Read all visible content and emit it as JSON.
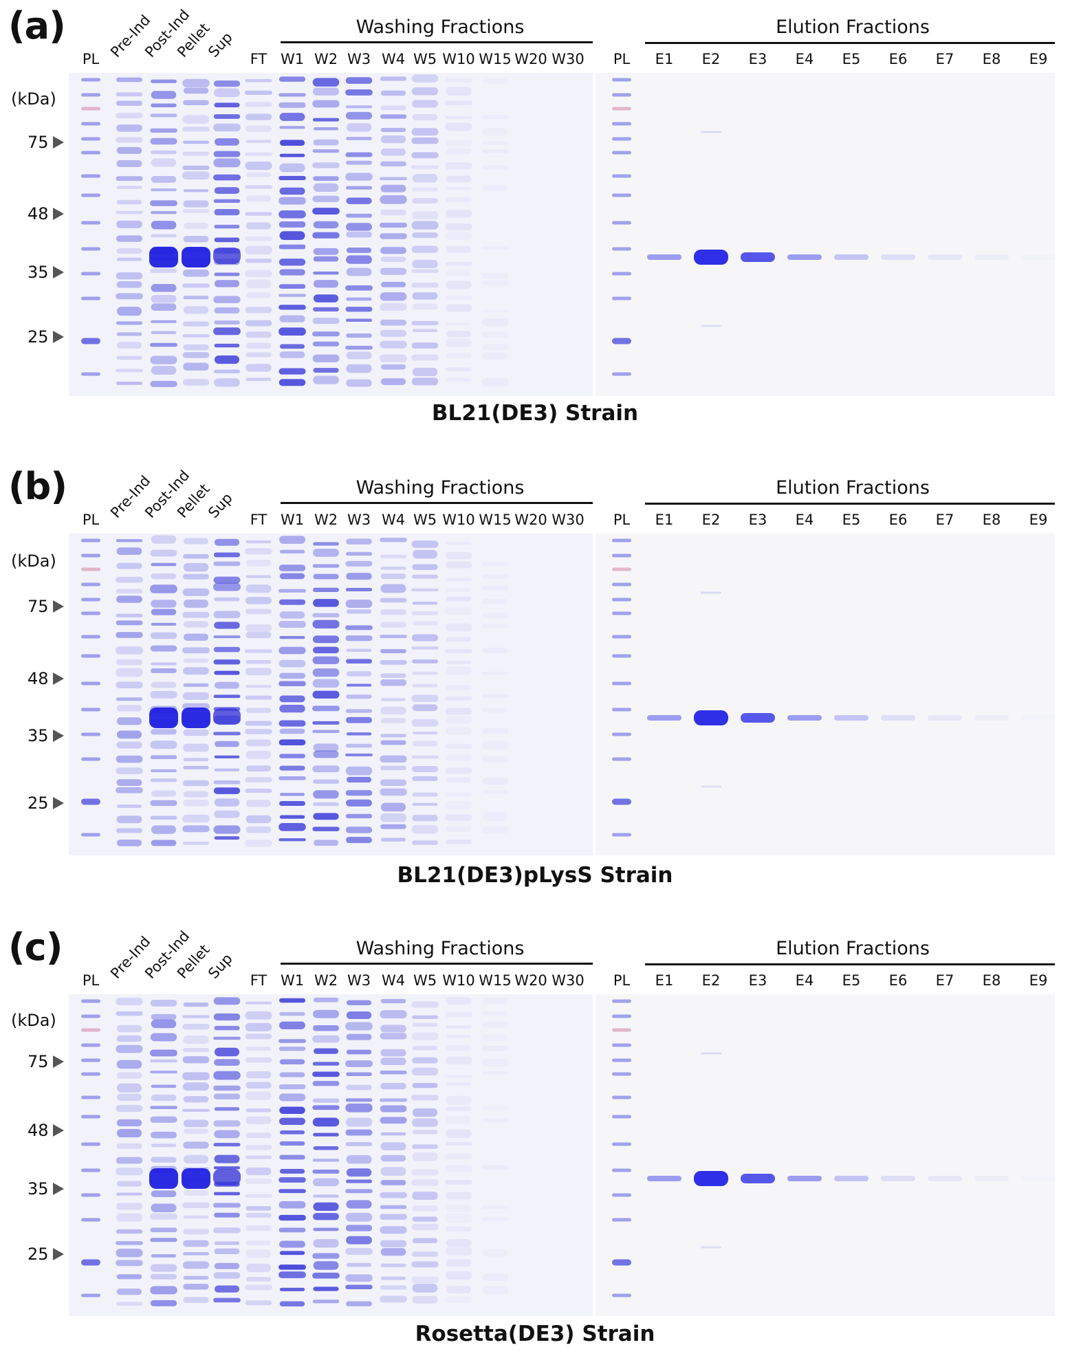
{
  "panels": [
    {
      "letter": "(a)",
      "caption": "BL21(DE3) Strain",
      "washing_title": "Washing Fractions",
      "elution_title": "Elution Fractions",
      "kda_unit": "(kDa)",
      "markers": [
        "75",
        "48",
        "35",
        "25"
      ]
    },
    {
      "letter": "(b)",
      "caption": "BL21(DE3)pLysS Strain",
      "washing_title": "Washing Fractions",
      "elution_title": "Elution Fractions",
      "kda_unit": "(kDa)",
      "markers": [
        "75",
        "48",
        "35",
        "25"
      ]
    },
    {
      "letter": "(c)",
      "caption": "Rosetta(DE3) Strain",
      "washing_title": "Washing Fractions",
      "elution_title": "Elution Fractions",
      "kda_unit": "(kDa)",
      "markers": [
        "75",
        "48",
        "35",
        "25"
      ]
    }
  ],
  "left_lanes": [
    "PL",
    "Pre-Ind",
    "Post-Ind",
    "Pellet",
    "Sup",
    "FT",
    "W1",
    "W2",
    "W3",
    "W4",
    "W5",
    "W10",
    "W15",
    "W20",
    "W30"
  ],
  "right_lanes": [
    "PL",
    "E1",
    "E2",
    "E3",
    "E4",
    "E5",
    "E6",
    "E7",
    "E8",
    "E9"
  ],
  "colors": {
    "gel_background": "#f2f2fb",
    "stain": "#3a3ad8",
    "marker_pink": "#c86a8a",
    "arrow": "#555555"
  }
}
